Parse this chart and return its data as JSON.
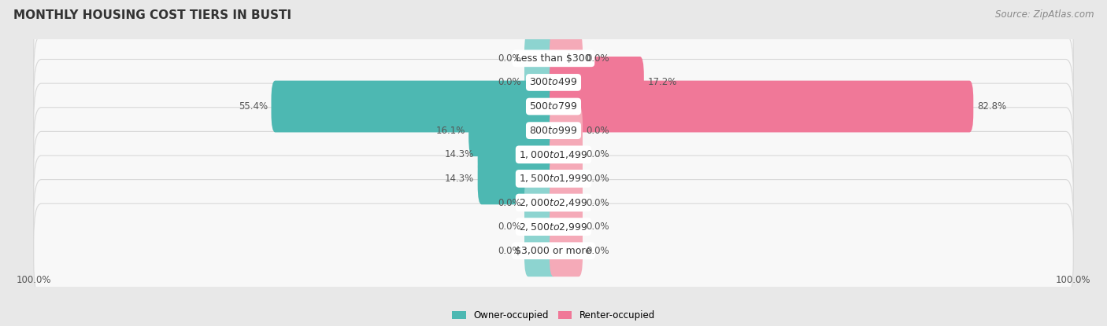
{
  "title": "MONTHLY HOUSING COST TIERS IN BUSTI",
  "source": "Source: ZipAtlas.com",
  "categories": [
    "Less than $300",
    "$300 to $499",
    "$500 to $799",
    "$800 to $999",
    "$1,000 to $1,499",
    "$1,500 to $1,999",
    "$2,000 to $2,499",
    "$2,500 to $2,999",
    "$3,000 or more"
  ],
  "owner_values": [
    0.0,
    0.0,
    55.4,
    16.1,
    14.3,
    14.3,
    0.0,
    0.0,
    0.0
  ],
  "renter_values": [
    0.0,
    17.2,
    82.8,
    0.0,
    0.0,
    0.0,
    0.0,
    0.0,
    0.0
  ],
  "owner_color": "#4db8b2",
  "renter_color": "#f07898",
  "owner_color_zero": "#8dd4d0",
  "renter_color_zero": "#f5aab8",
  "bg_color": "#e8e8e8",
  "row_bg_color": "#f8f8f8",
  "row_border_color": "#d8d8d8",
  "max_val": 100.0,
  "zero_stub": 5.0,
  "x_left_label": "100.0%",
  "x_right_label": "100.0%",
  "legend_owner": "Owner-occupied",
  "legend_renter": "Renter-occupied",
  "title_fontsize": 11,
  "source_fontsize": 8.5,
  "label_fontsize": 8.5,
  "cat_fontsize": 9
}
